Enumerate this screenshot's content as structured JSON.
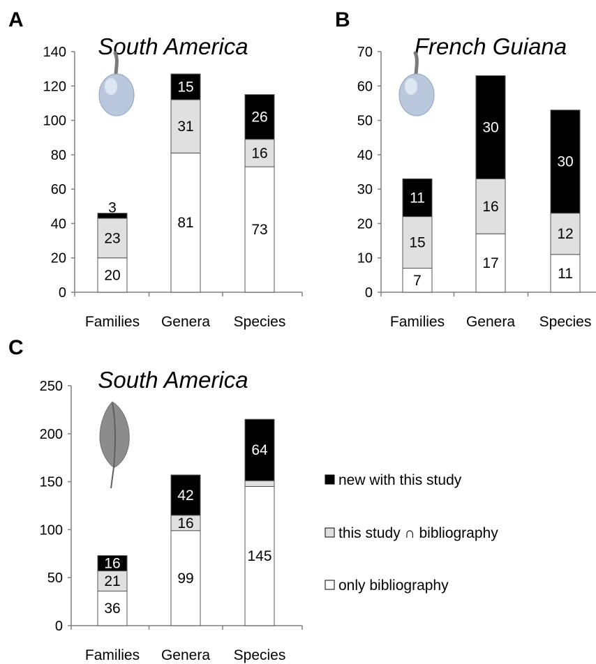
{
  "colors": {
    "new": "#000000",
    "overlap": "#e0e0e0",
    "bibliography": "#ffffff",
    "axis": "#808080",
    "bar_edge": "#555555"
  },
  "legend": {
    "items": [
      {
        "key": "new",
        "label": "new with this study"
      },
      {
        "key": "overlap",
        "label": "this study ∩ bibliography"
      },
      {
        "key": "bibliography",
        "label": "only bibliography"
      }
    ]
  },
  "icons": [
    "fruit-icon",
    "fruit-icon",
    "leaf-icon"
  ],
  "chart_data": [
    {
      "panel": "A",
      "title": "South America",
      "type": "bar",
      "stacked": true,
      "categories": [
        "Families",
        "Genera",
        "Species"
      ],
      "ylim": [
        0,
        140
      ],
      "yticks": [
        0,
        20,
        40,
        60,
        80,
        100,
        120,
        140
      ],
      "series": [
        {
          "key": "bibliography",
          "values": [
            20,
            81,
            73
          ]
        },
        {
          "key": "overlap",
          "values": [
            23,
            31,
            16
          ]
        },
        {
          "key": "new",
          "values": [
            3,
            15,
            26
          ]
        }
      ]
    },
    {
      "panel": "B",
      "title": "French Guiana",
      "type": "bar",
      "stacked": true,
      "categories": [
        "Families",
        "Genera",
        "Species"
      ],
      "ylim": [
        0,
        70
      ],
      "yticks": [
        0,
        10,
        20,
        30,
        40,
        50,
        60,
        70
      ],
      "series": [
        {
          "key": "bibliography",
          "values": [
            7,
            17,
            11
          ]
        },
        {
          "key": "overlap",
          "values": [
            15,
            16,
            12
          ]
        },
        {
          "key": "new",
          "values": [
            11,
            30,
            30
          ]
        }
      ]
    },
    {
      "panel": "C",
      "title": "South America",
      "type": "bar",
      "stacked": true,
      "categories": [
        "Families",
        "Genera",
        "Species"
      ],
      "ylim": [
        0,
        250
      ],
      "yticks": [
        0,
        50,
        100,
        150,
        200,
        250
      ],
      "series": [
        {
          "key": "bibliography",
          "values": [
            36,
            99,
            145
          ]
        },
        {
          "key": "overlap",
          "values": [
            21,
            16,
            6
          ]
        },
        {
          "key": "new",
          "values": [
            16,
            42,
            64
          ]
        }
      ]
    }
  ]
}
